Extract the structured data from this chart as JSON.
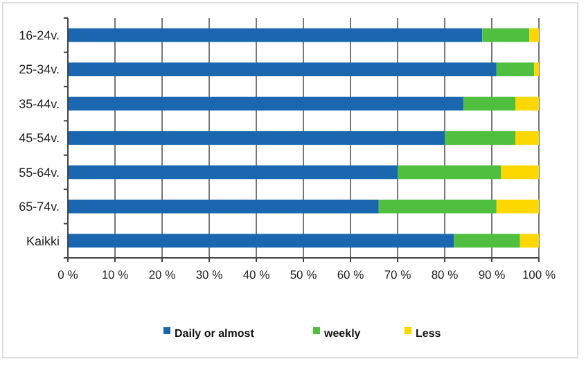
{
  "chart_data": {
    "type": "bar",
    "orientation": "horizontal",
    "stacked": true,
    "categories": [
      "16-24v.",
      "25-34v.",
      "35-44v.",
      "45-54v.",
      "55-64v.",
      "65-74v.",
      "Kaikki"
    ],
    "series": [
      {
        "name": "Daily or almost",
        "color": "#1a67b0",
        "values": [
          88,
          91,
          84,
          80,
          70,
          66,
          82
        ]
      },
      {
        "name": "weekly",
        "color": "#50bf40",
        "values": [
          10,
          8,
          11,
          15,
          22,
          25,
          14
        ]
      },
      {
        "name": "Less",
        "color": "#fdd700",
        "values": [
          2,
          1,
          5,
          5,
          8,
          9,
          4
        ]
      }
    ],
    "xlim": [
      0,
      100
    ],
    "xticks": [
      {
        "value": 0,
        "label": "0 %"
      },
      {
        "value": 10,
        "label": "10 %"
      },
      {
        "value": 20,
        "label": "20 %"
      },
      {
        "value": 30,
        "label": "30 %"
      },
      {
        "value": 40,
        "label": "40 %"
      },
      {
        "value": 50,
        "label": "50 %"
      },
      {
        "value": 60,
        "label": "60 %"
      },
      {
        "value": 70,
        "label": "70 %"
      },
      {
        "value": 80,
        "label": "80 %"
      },
      {
        "value": 90,
        "label": "90 %"
      },
      {
        "value": 100,
        "label": "100 %"
      }
    ],
    "grid": "x",
    "legend": "bottom"
  }
}
